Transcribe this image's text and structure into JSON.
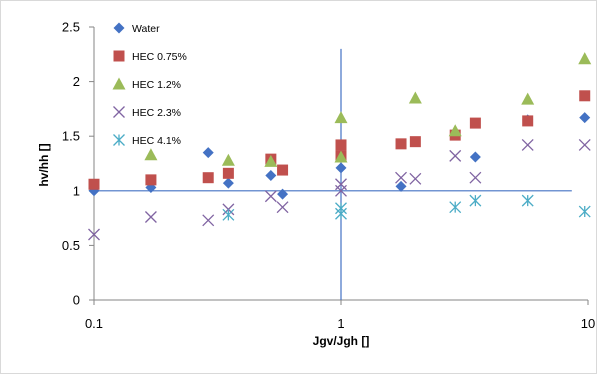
{
  "chart_data": {
    "type": "scatter",
    "title": "",
    "xlabel": "Jgv/Jgh []",
    "ylabel": "hv/hh []",
    "xscale": "log",
    "xlim": [
      0.1,
      10
    ],
    "ylim": [
      0,
      2.5
    ],
    "x_tick_labels": [
      "0.1",
      "1",
      "10"
    ],
    "y_tick_labels": [
      "0",
      "0.5",
      "1",
      "1.5",
      "2",
      "2.5"
    ],
    "grid": false,
    "legend_position": "top-left",
    "reference_lines": {
      "x": 1,
      "y": 1,
      "color": "#4472C4"
    },
    "series": [
      {
        "name": "Water",
        "marker": "diamond",
        "color": "#4472C4",
        "points": [
          [
            0.1,
            1.0
          ],
          [
            0.17,
            1.03
          ],
          [
            0.29,
            1.35
          ],
          [
            0.35,
            1.07
          ],
          [
            0.52,
            1.14
          ],
          [
            0.58,
            0.97
          ],
          [
            1.0,
            1.21
          ],
          [
            1.75,
            1.04
          ],
          [
            3.5,
            1.31
          ],
          [
            5.7,
            1.65
          ],
          [
            9.7,
            1.67
          ]
        ]
      },
      {
        "name": "HEC 0.75%",
        "marker": "square",
        "color": "#C0504D",
        "points": [
          [
            0.1,
            1.06
          ],
          [
            0.17,
            1.1
          ],
          [
            0.29,
            1.12
          ],
          [
            0.35,
            1.16
          ],
          [
            0.52,
            1.29
          ],
          [
            0.58,
            1.19
          ],
          [
            1.0,
            1.32
          ],
          [
            1.0,
            1.42
          ],
          [
            1.75,
            1.43
          ],
          [
            2.0,
            1.45
          ],
          [
            2.9,
            1.51
          ],
          [
            3.5,
            1.62
          ],
          [
            5.7,
            1.64
          ],
          [
            9.7,
            1.87
          ]
        ]
      },
      {
        "name": "HEC 1.2%",
        "marker": "triangle",
        "color": "#9BBB59",
        "points": [
          [
            0.17,
            1.33
          ],
          [
            0.35,
            1.28
          ],
          [
            0.52,
            1.27
          ],
          [
            1.0,
            1.31
          ],
          [
            1.0,
            1.67
          ],
          [
            2.0,
            1.85
          ],
          [
            2.9,
            1.55
          ],
          [
            5.7,
            1.84
          ],
          [
            9.7,
            2.21
          ]
        ]
      },
      {
        "name": "HEC 2.3%",
        "marker": "x",
        "color": "#8064A2",
        "points": [
          [
            0.1,
            0.6
          ],
          [
            0.17,
            0.76
          ],
          [
            0.29,
            0.73
          ],
          [
            0.35,
            0.83
          ],
          [
            0.52,
            0.95
          ],
          [
            0.58,
            0.85
          ],
          [
            1.0,
            1.0
          ],
          [
            1.0,
            1.06
          ],
          [
            1.75,
            1.12
          ],
          [
            2.0,
            1.11
          ],
          [
            2.9,
            1.32
          ],
          [
            3.5,
            1.12
          ],
          [
            5.7,
            1.42
          ],
          [
            9.7,
            1.42
          ]
        ]
      },
      {
        "name": "HEC 4.1%",
        "marker": "asterisk",
        "color": "#4BACC6",
        "points": [
          [
            0.35,
            0.78
          ],
          [
            1.0,
            0.79
          ],
          [
            1.0,
            0.84
          ],
          [
            2.9,
            0.85
          ],
          [
            3.5,
            0.91
          ],
          [
            5.7,
            0.91
          ],
          [
            9.7,
            0.81
          ]
        ]
      }
    ]
  }
}
